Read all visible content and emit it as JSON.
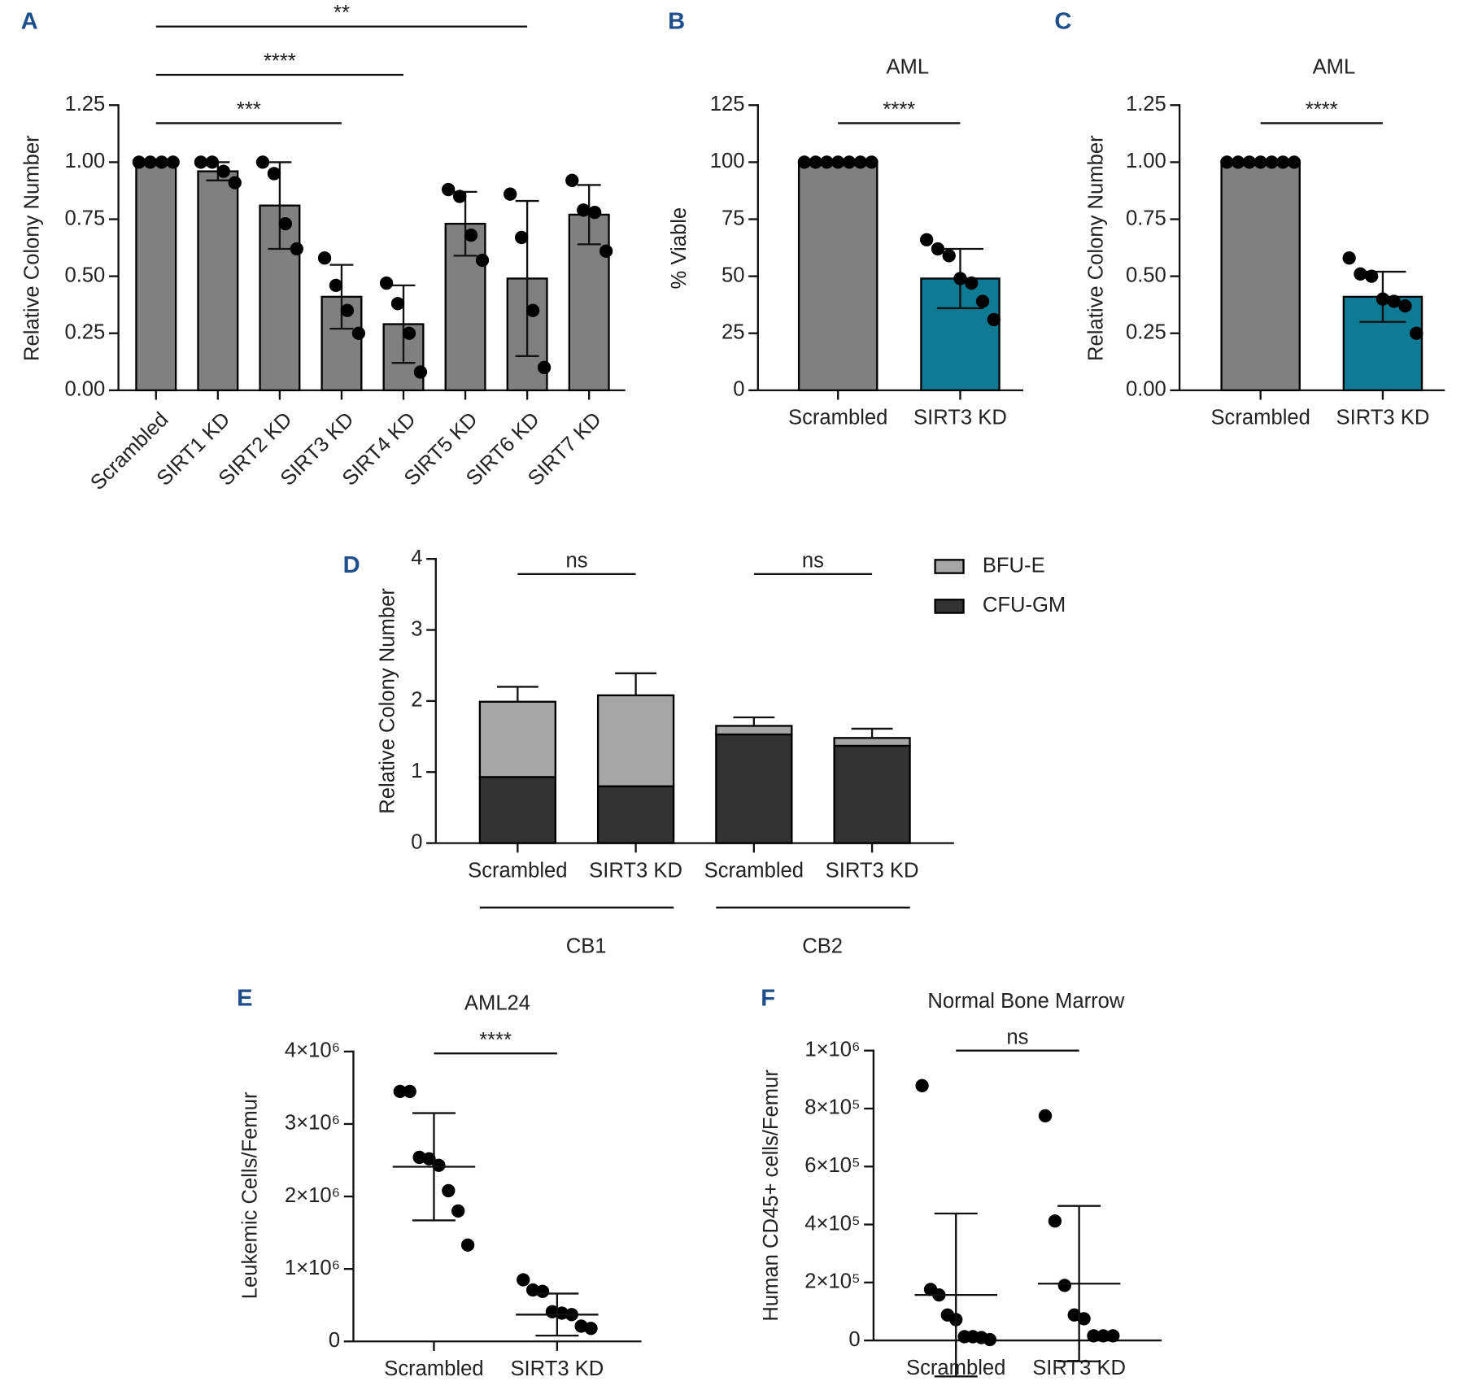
{
  "chart_data": [
    {
      "panel": "A",
      "type": "bar",
      "ylabel": "Relative Colony Number",
      "categories": [
        "Scrambled",
        "SIRT1 KD",
        "SIRT2 KD",
        "SIRT3 KD",
        "SIRT4 KD",
        "SIRT5 KD",
        "SIRT6 KD",
        "SIRT7 KD"
      ],
      "values": [
        1.0,
        0.96,
        0.81,
        0.41,
        0.29,
        0.73,
        0.49,
        0.77
      ],
      "errors": [
        0,
        0.04,
        0.19,
        0.14,
        0.17,
        0.14,
        0.34,
        0.13
      ],
      "points": [
        [
          1.0,
          1.0,
          1.0,
          1.0
        ],
        [
          1.0,
          1.0,
          0.96,
          0.91
        ],
        [
          1.0,
          0.95,
          0.73,
          0.62
        ],
        [
          0.58,
          0.46,
          0.35,
          0.25
        ],
        [
          0.47,
          0.38,
          0.25,
          0.08
        ],
        [
          0.88,
          0.85,
          0.68,
          0.57
        ],
        [
          0.86,
          0.67,
          0.35,
          0.1
        ],
        [
          0.92,
          0.79,
          0.78,
          0.61
        ]
      ],
      "colors": [
        "#808080",
        "#808080",
        "#808080",
        "#808080",
        "#808080",
        "#808080",
        "#808080",
        "#808080"
      ],
      "ylim": [
        0,
        1.25
      ],
      "yticks": [
        {
          "value": 0,
          "label": "0.00"
        },
        {
          "value": 0.25,
          "label": "0.25"
        },
        {
          "value": 0.5,
          "label": "0.50"
        },
        {
          "value": 0.75,
          "label": "0.75"
        },
        {
          "value": 1,
          "label": "1.00"
        },
        {
          "value": 1.25,
          "label": "1.25"
        }
      ],
      "annotations": [
        {
          "label": "***",
          "between": [
            0,
            3
          ]
        },
        {
          "label": "****",
          "between": [
            0,
            4
          ]
        },
        {
          "label": "**",
          "between": [
            0,
            6
          ]
        }
      ]
    },
    {
      "panel": "B",
      "type": "bar",
      "title": "AML",
      "ylabel": "% Viable",
      "categories": [
        "Scrambled",
        "SIRT3 KD"
      ],
      "values": [
        100,
        49
      ],
      "errors": [
        0,
        13
      ],
      "points": [
        [
          100,
          100,
          100,
          100,
          100,
          100,
          100
        ],
        [
          66,
          62,
          59,
          49,
          47,
          39,
          31
        ]
      ],
      "colors": [
        "#808080",
        "#0e7a94"
      ],
      "ylim": [
        0,
        125
      ],
      "yticks": [
        0,
        25,
        50,
        75,
        100,
        125
      ],
      "annotations": [
        {
          "label": "****",
          "between": [
            0,
            1
          ]
        }
      ]
    },
    {
      "panel": "C",
      "type": "bar",
      "title": "AML",
      "ylabel": "Relative Colony Number",
      "categories": [
        "Scrambled",
        "SIRT3 KD"
      ],
      "values": [
        1.0,
        0.41
      ],
      "errors": [
        0,
        0.11
      ],
      "points": [
        [
          1,
          1,
          1,
          1,
          1,
          1,
          1
        ],
        [
          0.58,
          0.51,
          0.5,
          0.4,
          0.39,
          0.37,
          0.25
        ]
      ],
      "colors": [
        "#808080",
        "#0e7a94"
      ],
      "ylim": [
        0,
        1.25
      ],
      "yticks": [
        {
          "value": 0,
          "label": "0.00"
        },
        {
          "value": 0.25,
          "label": "0.25"
        },
        {
          "value": 0.5,
          "label": "0.50"
        },
        {
          "value": 0.75,
          "label": "0.75"
        },
        {
          "value": 1,
          "label": "1.00"
        },
        {
          "value": 1.25,
          "label": "1.25"
        }
      ],
      "annotations": [
        {
          "label": "****",
          "between": [
            0,
            1
          ]
        }
      ]
    },
    {
      "panel": "D",
      "type": "stacked_bar",
      "ylabel": "Relative Colony Number",
      "categories": [
        "Scrambled",
        "SIRT3 KD",
        "Scrambled",
        "SIRT3 KD"
      ],
      "groups": [
        {
          "label": "CB1",
          "categories": [
            0,
            1
          ]
        },
        {
          "label": "CB2",
          "categories": [
            2,
            3
          ]
        }
      ],
      "series": [
        {
          "name": "CFU-GM",
          "color": "#333333",
          "values": [
            0.93,
            0.8,
            1.53,
            1.37
          ],
          "errors": [
            0.11,
            0.16,
            0.05,
            0.05
          ]
        },
        {
          "name": "BFU-E",
          "color": "#a6a6a6",
          "values": [
            1.06,
            1.28,
            0.12,
            0.11
          ],
          "errors": [
            0.21,
            0.31,
            0.12,
            0.13
          ]
        }
      ],
      "legend": "upper right",
      "ylim": [
        0,
        4
      ],
      "yticks": [
        0,
        1,
        2,
        3,
        4
      ],
      "annotations": [
        {
          "label": "ns",
          "between": [
            0,
            1
          ]
        },
        {
          "label": "ns",
          "between": [
            2,
            3
          ]
        }
      ]
    },
    {
      "panel": "E",
      "type": "dot",
      "title": "AML24",
      "ylabel": "Leukemic Cells/Femur",
      "categories": [
        "Scrambled",
        "SIRT3 KD"
      ],
      "values": [
        2410000,
        370000
      ],
      "errors": [
        740000,
        290000
      ],
      "points": [
        [
          3450000,
          3450000,
          2540000,
          2520000,
          2430000,
          2080000,
          1800000,
          1330000
        ],
        [
          850000,
          710000,
          690000,
          410000,
          390000,
          370000,
          210000,
          180000
        ]
      ],
      "ylim": [
        0,
        4000000
      ],
      "yticks": [
        0,
        {
          "value": 1000000,
          "label": "1×10⁶"
        },
        {
          "value": 2000000,
          "label": "2×10⁶"
        },
        {
          "value": 3000000,
          "label": "3×10⁶"
        },
        {
          "value": 4000000,
          "label": "4×10⁶"
        }
      ],
      "annotations": [
        {
          "label": "****",
          "between": [
            0,
            1
          ]
        }
      ]
    },
    {
      "panel": "F",
      "type": "dot",
      "title": "Normal Bone Marrow",
      "ylabel": "Human CD45+ cells/Femur",
      "categories": [
        "Scrambled",
        "SIRT3 KD"
      ],
      "values": [
        157000,
        196000
      ],
      "errors": [
        281000,
        268000
      ],
      "points": [
        [
          879000,
          176000,
          157000,
          88000,
          72000,
          13000,
          13000,
          10000,
          3000
        ],
        [
          775000,
          412000,
          190000,
          88000,
          75000,
          16000,
          16000,
          16000
        ]
      ],
      "ylim": [
        0,
        1000000
      ],
      "yticks": [
        0,
        {
          "value": 200000,
          "label": "2×10⁵"
        },
        {
          "value": 400000,
          "label": "4×10⁵"
        },
        {
          "value": 600000,
          "label": "6×10⁵"
        },
        {
          "value": 800000,
          "label": "8×10⁵"
        },
        {
          "value": 1000000,
          "label": "1×10⁶"
        }
      ],
      "annotations": [
        {
          "label": "ns",
          "between": [
            0,
            1
          ]
        }
      ]
    }
  ]
}
